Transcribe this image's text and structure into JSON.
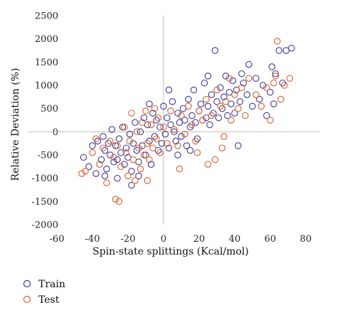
{
  "chart_data": {
    "type": "scatter",
    "xlabel": "Spin-state splittings (Kcal/mol)",
    "ylabel": "Relative Deviation (%)",
    "xlim": [
      -60,
      80
    ],
    "ylim": [
      -2000,
      2500
    ],
    "x_ticks": [
      -60,
      -40,
      -20,
      0,
      20,
      40,
      60,
      80
    ],
    "y_ticks": [
      2500,
      2000,
      1500,
      1000,
      500,
      0,
      -500,
      -1000,
      -1500,
      -2000
    ],
    "grid": false,
    "legend_position": "bottom-left",
    "series": [
      {
        "name": "Train",
        "color": "#3b3b9a",
        "marker": "open-circle",
        "points": [
          [
            -45,
            -550
          ],
          [
            -42,
            -750
          ],
          [
            -40,
            -300
          ],
          [
            -38,
            -900
          ],
          [
            -37,
            -200
          ],
          [
            -35,
            -600
          ],
          [
            -34,
            -100
          ],
          [
            -33,
            -400
          ],
          [
            -32,
            -800
          ],
          [
            -31,
            -250
          ],
          [
            -30,
            -500
          ],
          [
            -29,
            50
          ],
          [
            -28,
            -650
          ],
          [
            -27,
            -300
          ],
          [
            -26,
            -1000
          ],
          [
            -25,
            -150
          ],
          [
            -24,
            -450
          ],
          [
            -23,
            100
          ],
          [
            -22,
            -700
          ],
          [
            -21,
            -350
          ],
          [
            -20,
            -550
          ],
          [
            -19,
            -50
          ],
          [
            -18,
            -850
          ],
          [
            -17,
            -250
          ],
          [
            -16,
            200
          ],
          [
            -15,
            -400
          ],
          [
            -14,
            -650
          ],
          [
            -13,
            0
          ],
          [
            -12,
            -300
          ],
          [
            -11,
            300
          ],
          [
            -10,
            -500
          ],
          [
            -9,
            150
          ],
          [
            -8,
            -200
          ],
          [
            -7,
            -700
          ],
          [
            -6,
            400
          ],
          [
            -5,
            -100
          ],
          [
            -4,
            250
          ],
          [
            -3,
            -400
          ],
          [
            -2,
            100
          ],
          [
            -1,
            -250
          ],
          [
            0,
            550
          ],
          [
            1,
            -50
          ],
          [
            2,
            300
          ],
          [
            3,
            -350
          ],
          [
            4,
            150
          ],
          [
            5,
            650
          ],
          [
            6,
            0
          ],
          [
            7,
            -200
          ],
          [
            8,
            400
          ],
          [
            9,
            200
          ],
          [
            10,
            -100
          ],
          [
            11,
            500
          ],
          [
            12,
            250
          ],
          [
            13,
            -300
          ],
          [
            14,
            700
          ],
          [
            15,
            100
          ],
          [
            16,
            350
          ],
          [
            17,
            900
          ],
          [
            18,
            200
          ],
          [
            19,
            -150
          ],
          [
            20,
            450
          ],
          [
            21,
            600
          ],
          [
            22,
            250
          ],
          [
            23,
            1050
          ],
          [
            24,
            300
          ],
          [
            25,
            550
          ],
          [
            26,
            150
          ],
          [
            27,
            800
          ],
          [
            28,
            400
          ],
          [
            29,
            1750
          ],
          [
            30,
            650
          ],
          [
            31,
            300
          ],
          [
            32,
            950
          ],
          [
            33,
            500
          ],
          [
            34,
            750
          ],
          [
            35,
            1200
          ],
          [
            36,
            350
          ],
          [
            37,
            850
          ],
          [
            38,
            600
          ],
          [
            39,
            1100
          ],
          [
            40,
            400
          ],
          [
            41,
            900
          ],
          [
            42,
            -300
          ],
          [
            43,
            650
          ],
          [
            44,
            1250
          ],
          [
            45,
            1050
          ],
          [
            47,
            800
          ],
          [
            48,
            1450
          ],
          [
            50,
            550
          ],
          [
            52,
            1150
          ],
          [
            54,
            700
          ],
          [
            56,
            1000
          ],
          [
            58,
            350
          ],
          [
            60,
            850
          ],
          [
            61,
            1400
          ],
          [
            62,
            600
          ],
          [
            63,
            1250
          ],
          [
            65,
            1750
          ],
          [
            67,
            1050
          ],
          [
            69,
            1750
          ],
          [
            72,
            1800
          ],
          [
            -18,
            -1150
          ],
          [
            -26,
            -600
          ],
          [
            -14,
            -950
          ],
          [
            3,
            900
          ],
          [
            -8,
            600
          ],
          [
            15,
            -400
          ],
          [
            -33,
            -950
          ],
          [
            8,
            -500
          ],
          [
            25,
            1200
          ]
        ]
      },
      {
        "name": "Test",
        "color": "#d95f2b",
        "marker": "open-circle",
        "points": [
          [
            -44,
            -850
          ],
          [
            -40,
            -450
          ],
          [
            -38,
            -150
          ],
          [
            -36,
            -700
          ],
          [
            -34,
            -350
          ],
          [
            -32,
            -1100
          ],
          [
            -30,
            -200
          ],
          [
            -28,
            -550
          ],
          [
            -27,
            -1450
          ],
          [
            -26,
            -300
          ],
          [
            -24,
            -750
          ],
          [
            -22,
            100
          ],
          [
            -21,
            -450
          ],
          [
            -20,
            -950
          ],
          [
            -19,
            -200
          ],
          [
            -18,
            400
          ],
          [
            -17,
            -600
          ],
          [
            -16,
            -1050
          ],
          [
            -15,
            0
          ],
          [
            -14,
            -350
          ],
          [
            -13,
            -800
          ],
          [
            -12,
            200
          ],
          [
            -11,
            -500
          ],
          [
            -10,
            450
          ],
          [
            -9,
            -250
          ],
          [
            -8,
            -600
          ],
          [
            -7,
            150
          ],
          [
            -6,
            -350
          ],
          [
            -5,
            500
          ],
          [
            -4,
            -150
          ],
          [
            -3,
            300
          ],
          [
            -2,
            -450
          ],
          [
            0,
            100
          ],
          [
            2,
            -250
          ],
          [
            4,
            450
          ],
          [
            6,
            50
          ],
          [
            8,
            -300
          ],
          [
            10,
            350
          ],
          [
            12,
            -50
          ],
          [
            14,
            550
          ],
          [
            16,
            150
          ],
          [
            18,
            -200
          ],
          [
            20,
            450
          ],
          [
            22,
            250
          ],
          [
            24,
            700
          ],
          [
            25,
            -700
          ],
          [
            27,
            350
          ],
          [
            29,
            -600
          ],
          [
            30,
            900
          ],
          [
            32,
            550
          ],
          [
            34,
            -100
          ],
          [
            35,
            650
          ],
          [
            37,
            1150
          ],
          [
            38,
            250
          ],
          [
            40,
            800
          ],
          [
            42,
            500
          ],
          [
            44,
            950
          ],
          [
            46,
            350
          ],
          [
            48,
            1150
          ],
          [
            52,
            800
          ],
          [
            55,
            550
          ],
          [
            58,
            950
          ],
          [
            60,
            250
          ],
          [
            62,
            1050
          ],
          [
            63,
            1200
          ],
          [
            64,
            1950
          ],
          [
            66,
            700
          ],
          [
            68,
            1000
          ],
          [
            71,
            1150
          ],
          [
            -46,
            -900
          ],
          [
            -25,
            -1500
          ],
          [
            -9,
            -1050
          ],
          [
            9,
            -800
          ],
          [
            19,
            -450
          ],
          [
            33,
            -350
          ]
        ]
      }
    ]
  }
}
